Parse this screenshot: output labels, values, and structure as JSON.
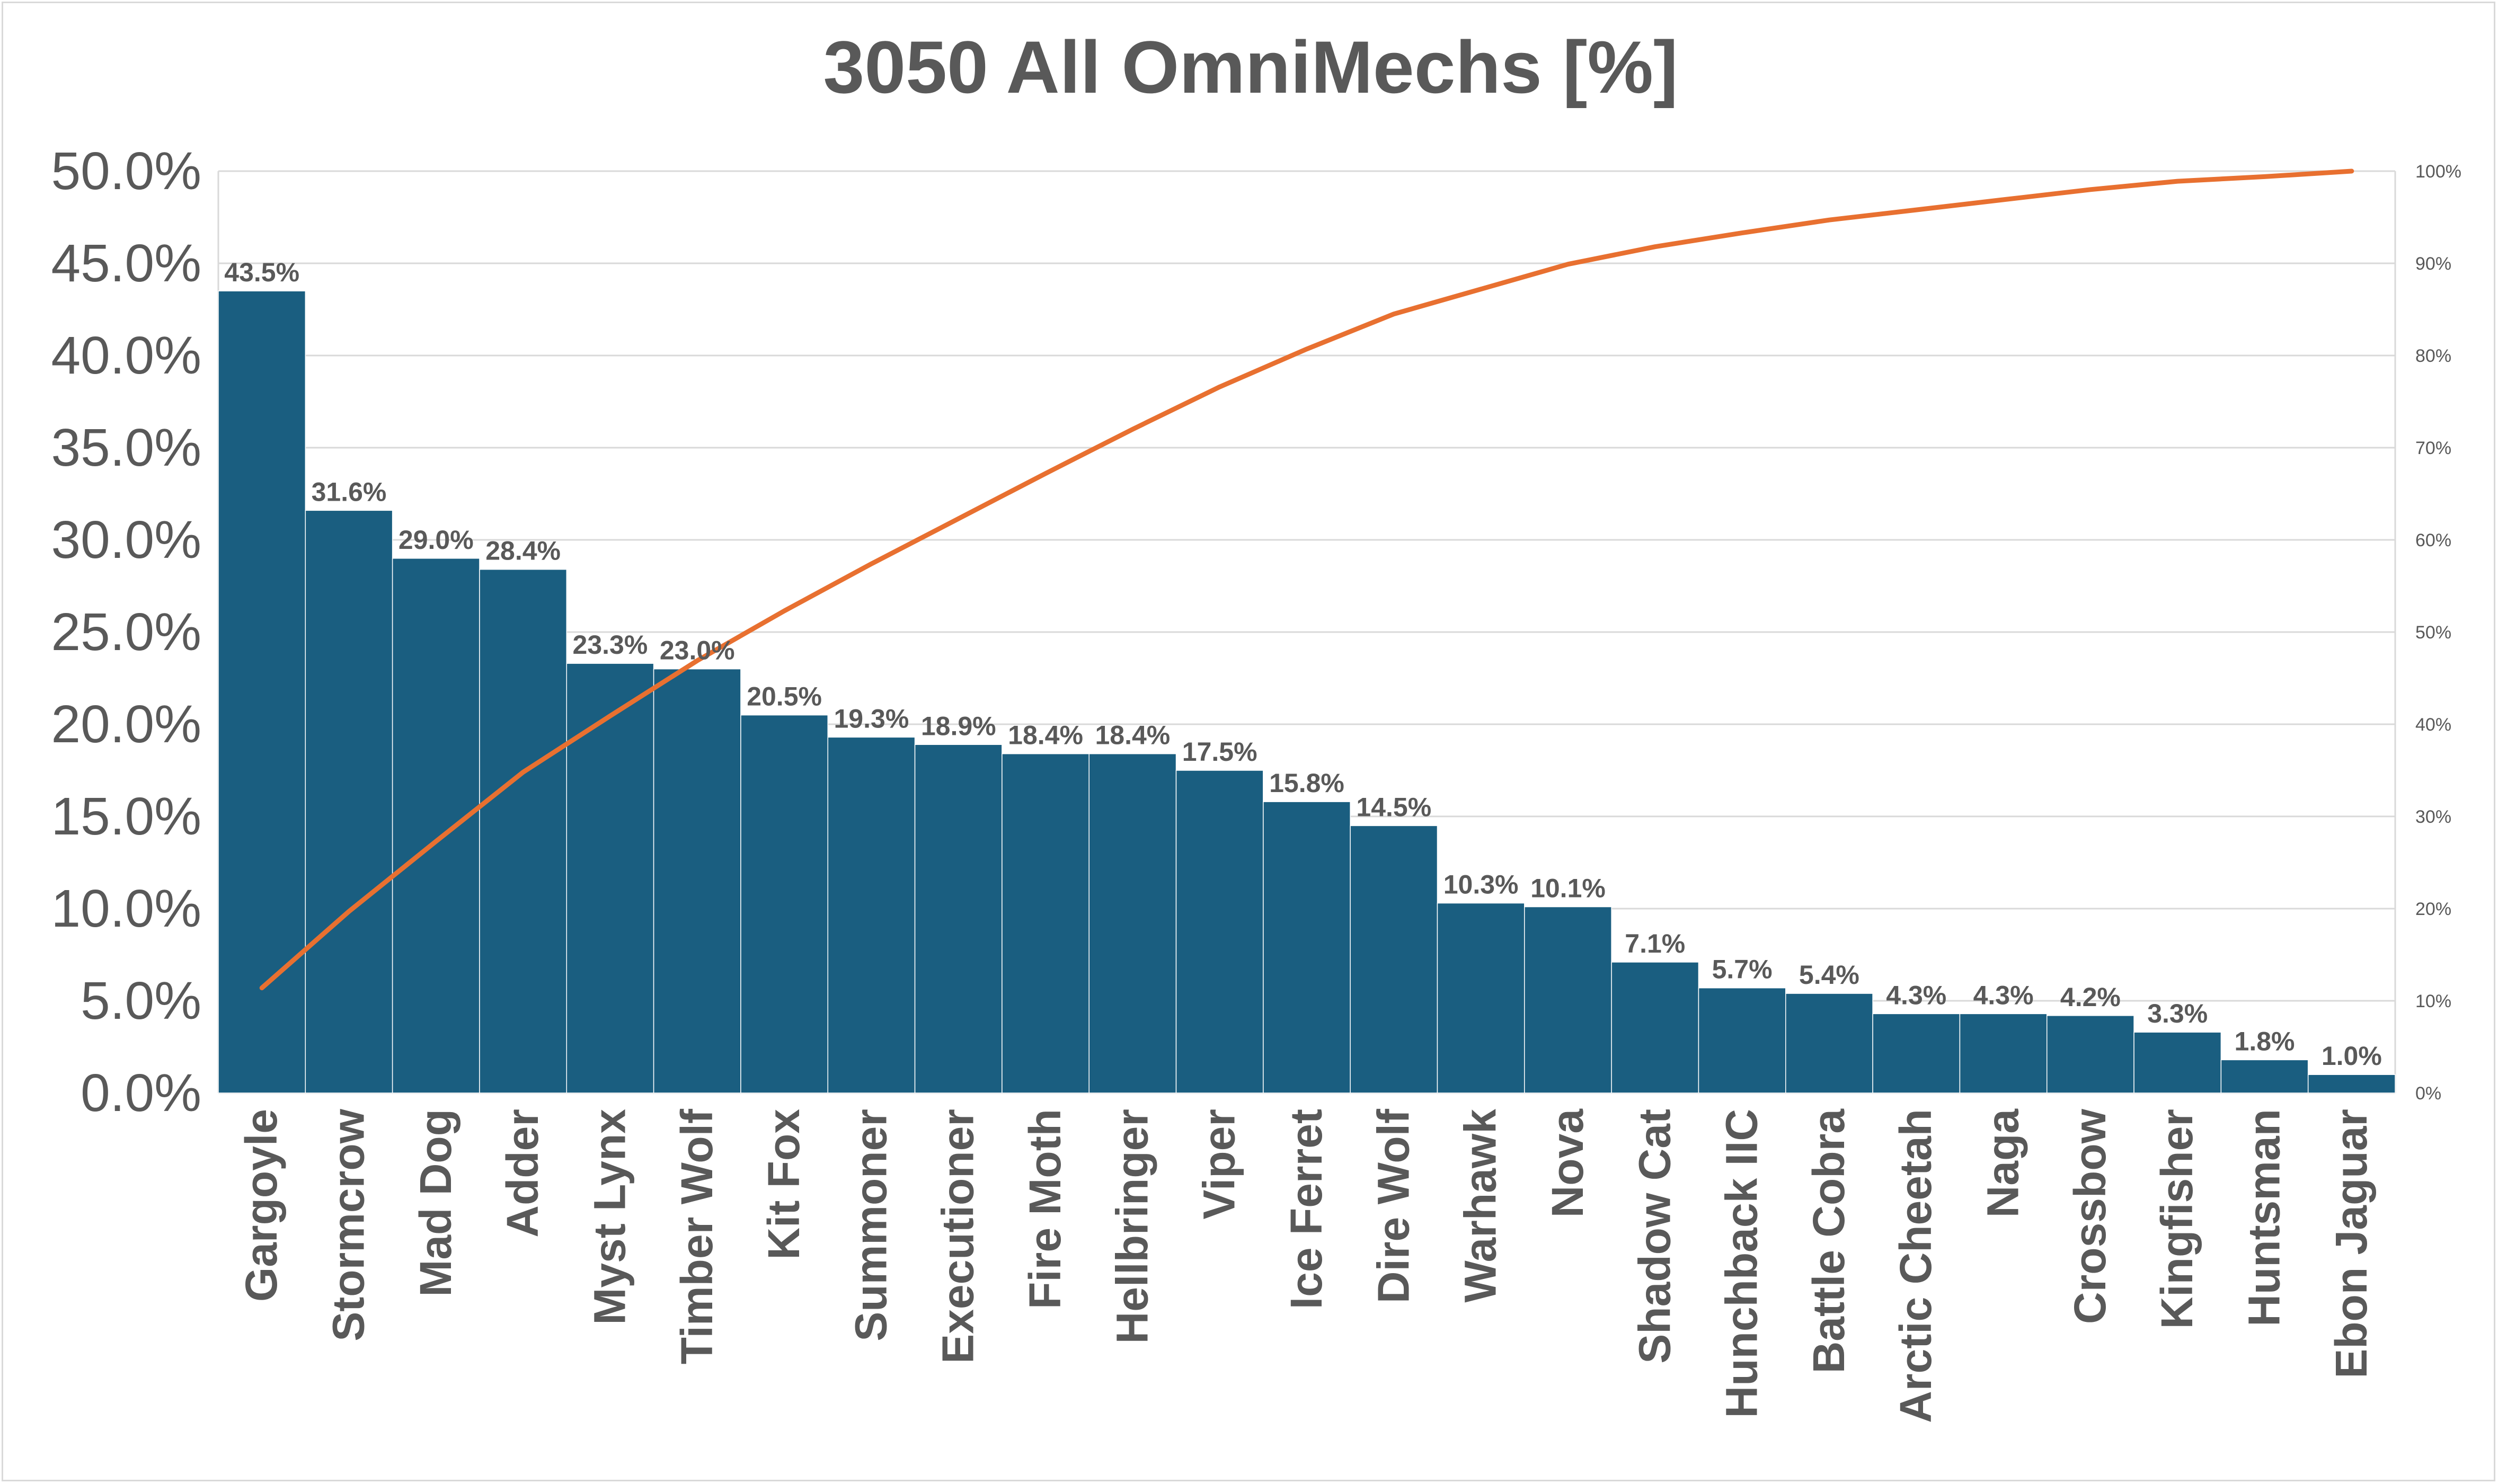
{
  "chart_data": {
    "type": "bar",
    "title": "3050 All OmniMechs [%]",
    "categories": [
      "Gargoyle",
      "Stormcrow",
      "Mad Dog",
      "Adder",
      "Myst Lynx",
      "Timber Wolf",
      "Kit Fox",
      "Summoner",
      "Executioner",
      "Fire Moth",
      "Hellbringer",
      "Viper",
      "Ice Ferret",
      "Dire Wolf",
      "Warhawk",
      "Nova",
      "Shadow Cat",
      "Hunchback IIC",
      "Battle Cobra",
      "Arctic Cheetah",
      "Naga",
      "Crossbow",
      "Kingfisher",
      "Huntsman",
      "Ebon Jaguar"
    ],
    "series": [
      {
        "type": "bar",
        "values": [
          43.5,
          31.6,
          29.0,
          28.4,
          23.3,
          23.0,
          20.5,
          19.3,
          18.9,
          18.4,
          18.4,
          17.5,
          15.8,
          14.5,
          10.3,
          10.1,
          7.1,
          5.7,
          5.4,
          4.3,
          4.3,
          4.2,
          3.3,
          1.8,
          1.0
        ],
        "data_labels": [
          "43.5%",
          "31.6%",
          "29.0%",
          "28.4%",
          "23.3%",
          "23.0%",
          "20.5%",
          "19.3%",
          "18.9%",
          "18.4%",
          "18.4%",
          "17.5%",
          "15.8%",
          "14.5%",
          "10.3%",
          "10.1%",
          "7.1%",
          "5.7%",
          "5.4%",
          "4.3%",
          "4.3%",
          "4.2%",
          "3.3%",
          "1.8%",
          "1.0%"
        ],
        "color": "#1a5e80",
        "axis": "left"
      },
      {
        "type": "line",
        "values": [
          11.4,
          19.7,
          27.3,
          34.8,
          40.9,
          46.9,
          52.3,
          57.4,
          62.3,
          67.2,
          72.0,
          76.6,
          80.7,
          84.5,
          87.2,
          89.9,
          91.8,
          93.3,
          94.7,
          95.8,
          96.9,
          98.0,
          98.9,
          99.4,
          100.0
        ],
        "color": "#e87030",
        "axis": "right"
      }
    ],
    "y_left": {
      "ylim": [
        0,
        50
      ],
      "ticks": [
        "0.0%",
        "5.0%",
        "10.0%",
        "15.0%",
        "20.0%",
        "25.0%",
        "30.0%",
        "35.0%",
        "40.0%",
        "45.0%",
        "50.0%"
      ]
    },
    "y_right": {
      "ylim": [
        0,
        100
      ],
      "ticks": [
        "0%",
        "10%",
        "20%",
        "30%",
        "40%",
        "50%",
        "60%",
        "70%",
        "80%",
        "90%",
        "100%"
      ]
    },
    "grid": true,
    "legend": "none"
  },
  "colors": {
    "bar": "#1a5e80",
    "bar_edge": "#ffffff",
    "line": "#e87030",
    "text": "#595959",
    "grid": "#d9d9d9"
  }
}
